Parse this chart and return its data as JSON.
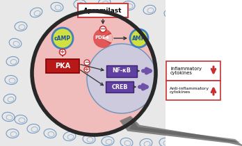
{
  "bg_color": "#e8e8e8",
  "cell_bg": "#f2b8b8",
  "nucleus_bg": "#c0d0e8",
  "title_box_text": "Apremilast",
  "title_box_border": "#c84040",
  "title_box_bg": "white",
  "camp_fill": "#d0e040",
  "camp_border": "#4080c0",
  "camp_text": "cAMP",
  "pde4_fill": "#e05858",
  "pde4_text": "PDE4",
  "amp_fill": "#d0e040",
  "amp_border": "#4080c0",
  "amp_text": "AMP",
  "pka_fill": "#b81818",
  "pka_text": "PKA",
  "nfkb_fill": "#6040a0",
  "nfkb_text": "NF-κB",
  "creb_fill": "#6040a0",
  "creb_text": "CREB",
  "arrow_dark": "#303030",
  "arrow_purple": "#7050a8",
  "sign_color": "#c83030",
  "box_border": "#c83030",
  "inflam_text": "Inflammatory\ncytokines",
  "anti_inflam_text": "Anti-inflammatory\ncytokines",
  "cell_scatter": "#5080b8",
  "mag_rim": "#282828",
  "mag_handle": "#707070",
  "white_bg": "#ffffff"
}
